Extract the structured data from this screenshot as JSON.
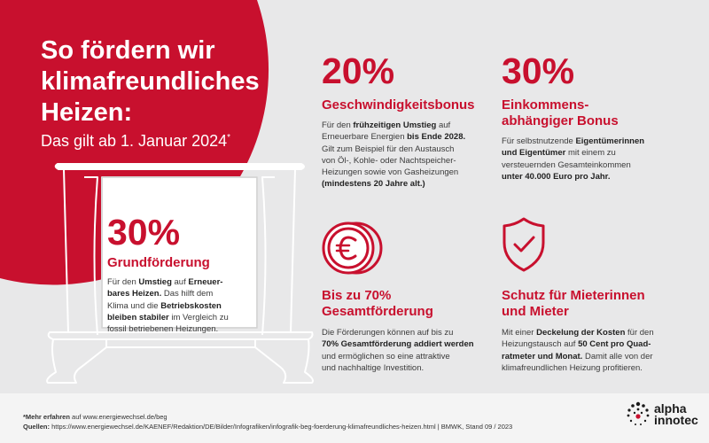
{
  "title": "So fördern wir klimafreundliches Heizen:",
  "subtitle": "Das gilt ab 1. Januar 2024",
  "subtitle_mark": "*",
  "colors": {
    "accent": "#c8102e",
    "background": "#e8e8e9",
    "text": "#3a3a3a"
  },
  "grund": {
    "percent": "30%",
    "heading": "Grundförderung",
    "text": [
      {
        "t": "Für den "
      },
      {
        "t": "Umstieg",
        "b": true
      },
      {
        "t": " auf "
      },
      {
        "t": "Erneuer-",
        "b": true
      },
      {
        "br": true
      },
      {
        "t": "bares Heizen.",
        "b": true
      },
      {
        "t": " Das hilft dem"
      },
      {
        "br": true
      },
      {
        "t": "Klima und die "
      },
      {
        "t": "Betriebskosten",
        "b": true
      },
      {
        "br": true
      },
      {
        "t": "bleiben stabiler",
        "b": true
      },
      {
        "t": " im Vergleich zu"
      },
      {
        "br": true
      },
      {
        "t": "fossil betriebenen Heizungen."
      }
    ]
  },
  "speed": {
    "percent": "20%",
    "heading": "Geschwindigkeitsbonus",
    "text": [
      {
        "t": "Für den "
      },
      {
        "t": "frühzeitigen Umstieg",
        "b": true
      },
      {
        "t": " auf"
      },
      {
        "br": true
      },
      {
        "t": "Erneuerbare Energien "
      },
      {
        "t": "bis Ende 2028.",
        "b": true
      },
      {
        "br": true
      },
      {
        "t": "Gilt zum Beispiel für den Austausch"
      },
      {
        "br": true
      },
      {
        "t": "von Öl-, Kohle- oder Nachtspeicher-"
      },
      {
        "br": true
      },
      {
        "t": "Heizungen sowie von Gasheizungen"
      },
      {
        "br": true
      },
      {
        "t": "(mindestens 20 Jahre alt.)",
        "b": true
      }
    ]
  },
  "income": {
    "percent": "30%",
    "heading_lines": [
      "Einkommens-",
      "abhängiger Bonus"
    ],
    "text": [
      {
        "t": "Für selbstnutzende "
      },
      {
        "t": "Eigentümerinnen",
        "b": true
      },
      {
        "br": true
      },
      {
        "t": "und Eigentümer",
        "b": true
      },
      {
        "t": " mit einem zu"
      },
      {
        "br": true
      },
      {
        "t": "versteuernden Gesamteinkommen"
      },
      {
        "br": true
      },
      {
        "t": "unter 40.000 Euro pro Jahr.",
        "b": true
      }
    ]
  },
  "total": {
    "icon": "euro-coin-icon",
    "heading_lines": [
      "Bis zu 70%",
      "Gesamtförderung"
    ],
    "text": [
      {
        "t": "Die Förderungen können auf bis zu"
      },
      {
        "br": true
      },
      {
        "t": "70% Gesamtförderung addiert werden",
        "b": true
      },
      {
        "br": true
      },
      {
        "t": "und ermöglichen so eine attraktive"
      },
      {
        "br": true
      },
      {
        "t": "und nachhaltige Investition."
      }
    ]
  },
  "tenant": {
    "icon": "shield-check-icon",
    "heading_lines": [
      "Schutz für Mieterinnen",
      "und Mieter"
    ],
    "text": [
      {
        "t": "Mit einer "
      },
      {
        "t": "Deckelung der Kosten",
        "b": true
      },
      {
        "t": " für den"
      },
      {
        "br": true
      },
      {
        "t": "Heizungstausch auf "
      },
      {
        "t": "50 Cent pro Quad-",
        "b": true
      },
      {
        "br": true
      },
      {
        "t": "ratmeter und Monat.",
        "b": true
      },
      {
        "t": " Damit alle von der"
      },
      {
        "br": true
      },
      {
        "t": "klimafreundlichen Heizung profitieren."
      }
    ]
  },
  "footer": {
    "note_prefix": "*Mehr erfahren",
    "note_text": " auf www.energiewechsel.de/beg",
    "source_prefix": "Quellen:",
    "source_text": " https://www.energiewechsel.de/KAENEF/Redaktion/DE/Bilder/Infografiken/infografik-beg-foerderung-klimafreundliches-heizen.html | BMWK, Stand 09 / 2023"
  },
  "logo": {
    "line1": "alpha",
    "line2": "innotec",
    "icon": "alpha-innotec-logo-icon"
  }
}
